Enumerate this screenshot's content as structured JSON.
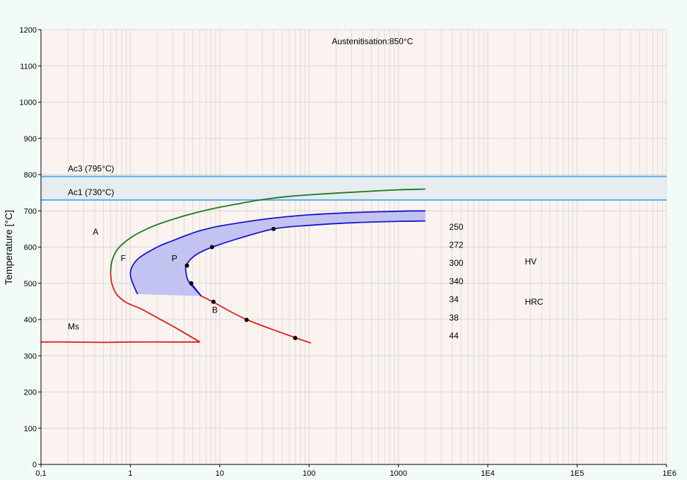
{
  "chart_data": {
    "type": "line",
    "title": "",
    "xlabel": "",
    "ylabel": "Temperature [°C]",
    "x_scale": "log",
    "xlim": [
      0.1,
      1000000
    ],
    "ylim": [
      0,
      1200
    ],
    "x_ticks": [
      {
        "value": 0.1,
        "label": "0,1"
      },
      {
        "value": 1,
        "label": "1"
      },
      {
        "value": 10,
        "label": "10"
      },
      {
        "value": 100,
        "label": "100"
      },
      {
        "value": 1000,
        "label": "1000"
      },
      {
        "value": 10000,
        "label": "1E4"
      },
      {
        "value": 100000,
        "label": "1E5"
      },
      {
        "value": 1000000,
        "label": "1E6"
      }
    ],
    "y_ticks": [
      0,
      100,
      200,
      300,
      400,
      500,
      600,
      700,
      800,
      900,
      1000,
      1100,
      1200
    ],
    "grid": true,
    "colors": {
      "plot_bg": "#fbf3ef",
      "grid": "#d7d7d7",
      "ac_band": "#e6ecf0",
      "ac_line": "#5aaee8",
      "ferrite": "#177a17",
      "pearlite": "#1717cc",
      "pearlite_fill": "#c3c3f2",
      "bainite": "#dd2020",
      "point": "#000000"
    },
    "reference_lines": [
      {
        "name": "Ac3",
        "label": "Ac3 (795°C)",
        "y": 795
      },
      {
        "name": "Ac1",
        "label": "Ac1 (730°C)",
        "y": 730
      }
    ],
    "annotations": [
      {
        "text": "Austenitisation:850°C",
        "x": 180,
        "y": 1160
      },
      {
        "text": "A",
        "x": 0.38,
        "y": 634
      },
      {
        "text": "F",
        "x": 0.78,
        "y": 561
      },
      {
        "text": "P",
        "x": 2.9,
        "y": 561
      },
      {
        "text": "B",
        "x": 8.2,
        "y": 419
      },
      {
        "text": "Ms",
        "x": 0.2,
        "y": 373
      },
      {
        "text": "HV",
        "x": 26000,
        "y": 552
      },
      {
        "text": "HRC",
        "x": 26000,
        "y": 441
      }
    ],
    "hardness_values": [
      {
        "text": "250",
        "x": 3700,
        "y": 648
      },
      {
        "text": "272",
        "x": 3700,
        "y": 598
      },
      {
        "text": "300",
        "x": 3700,
        "y": 548
      },
      {
        "text": "340",
        "x": 3700,
        "y": 498
      },
      {
        "text": "34",
        "x": 3700,
        "y": 448
      },
      {
        "text": "38",
        "x": 3700,
        "y": 397
      },
      {
        "text": "44",
        "x": 3700,
        "y": 347
      }
    ],
    "series": [
      {
        "key": "ferrite_start",
        "x": [
          0.6,
          0.62,
          0.7,
          0.85,
          1.2,
          2,
          4,
          8,
          15,
          30,
          60,
          150,
          400,
          1000,
          2000
        ],
        "y": [
          530,
          560,
          590,
          612,
          637,
          662,
          686,
          705,
          718,
          731,
          740,
          747,
          753,
          758,
          760
        ]
      },
      {
        "key": "pearlite_start",
        "x": [
          1.2,
          1.0,
          1.2,
          2,
          3,
          4.3,
          6,
          10,
          20,
          40,
          100,
          300,
          1000,
          2000
        ],
        "y": [
          470,
          525,
          566,
          600,
          618,
          633,
          645,
          658,
          670,
          680,
          689,
          695,
          699,
          700
        ]
      },
      {
        "key": "pearlite_finish",
        "x": [
          6.2,
          4.5,
          4.2,
          4.2,
          4.8,
          6,
          8.3,
          15,
          40,
          100,
          300,
          1000,
          2000
        ],
        "y": [
          465,
          505,
          530,
          548,
          568,
          585,
          600,
          621,
          650,
          660,
          667,
          671,
          672
        ]
      },
      {
        "key": "bainite_start",
        "x": [
          0.6,
          0.62,
          0.7,
          0.9,
          1.3,
          2,
          3.5,
          6
        ],
        "y": [
          530,
          500,
          470,
          447,
          430,
          405,
          372,
          338
        ]
      },
      {
        "key": "bainite_finish",
        "x": [
          6.2,
          8.5,
          20,
          70,
          105
        ],
        "y": [
          465,
          448,
          400,
          350,
          335
        ]
      },
      {
        "key": "ms_line",
        "x": [
          0.1,
          0.2,
          0.5,
          1,
          3,
          6
        ],
        "y": [
          338,
          338,
          337,
          338,
          338,
          338
        ]
      },
      {
        "key": "pearlite_finish_link",
        "x": [
          4.8,
          6.2
        ],
        "y": [
          500,
          465
        ]
      }
    ],
    "points": [
      {
        "x": 4.3,
        "y": 549
      },
      {
        "x": 4.8,
        "y": 500
      },
      {
        "x": 8.2,
        "y": 600
      },
      {
        "x": 40,
        "y": 650
      },
      {
        "x": 8.5,
        "y": 449
      },
      {
        "x": 20,
        "y": 399
      },
      {
        "x": 70,
        "y": 349
      }
    ]
  }
}
